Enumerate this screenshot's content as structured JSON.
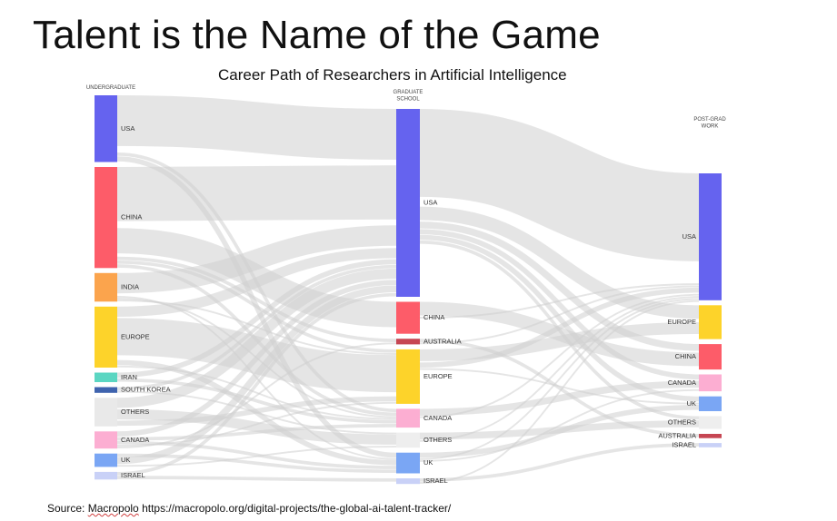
{
  "slide": {
    "title": "Talent is the Name of the Game",
    "subtitle": "Career Path of Researchers in Artificial Intelligence"
  },
  "source": {
    "prefix": "Source: ",
    "brand": "Macropolo",
    "url": "https://macropolo.org/digital-projects/the-global-ai-talent-tracker/"
  },
  "stages": [
    {
      "id": "ug",
      "lines": [
        "UNDERGRADUATE"
      ]
    },
    {
      "id": "grad",
      "lines": [
        "GRADUATE",
        "SCHOOL"
      ]
    },
    {
      "id": "post",
      "lines": [
        "POST-GRAD",
        "WORK"
      ]
    }
  ],
  "nodes": {
    "ug": [
      {
        "label": "USA",
        "color": "#6563ef",
        "value": 35
      },
      {
        "label": "CHINA",
        "color": "#fd5c69",
        "value": 53
      },
      {
        "label": "INDIA",
        "color": "#fba44d",
        "value": 15
      },
      {
        "label": "EUROPE",
        "color": "#fdd32a",
        "value": 32
      },
      {
        "label": "IRAN",
        "color": "#5bd6c2",
        "value": 5
      },
      {
        "label": "SOUTH KOREA",
        "color": "#3f63ae",
        "value": 3
      },
      {
        "label": "OTHERS",
        "color": "#e9e9e9",
        "value": 15
      },
      {
        "label": "CANADA",
        "color": "#fcaed2",
        "value": 9
      },
      {
        "label": "UK",
        "color": "#7aa6f4",
        "value": 7
      },
      {
        "label": "ISRAEL",
        "color": "#c9d1f7",
        "value": 4
      }
    ],
    "grad": [
      {
        "label": "USA",
        "color": "#6563ef",
        "value": 100
      },
      {
        "label": "CHINA",
        "color": "#fd5c69",
        "value": 17
      },
      {
        "label": "AUSTRALIA",
        "color": "#c64653",
        "value": 3
      },
      {
        "label": "EUROPE",
        "color": "#fdd32a",
        "value": 29
      },
      {
        "label": "CANADA",
        "color": "#fcaed2",
        "value": 10
      },
      {
        "label": "OTHERS",
        "color": "#eeeeee",
        "value": 8
      },
      {
        "label": "UK",
        "color": "#7aa6f4",
        "value": 11
      },
      {
        "label": "ISRAEL",
        "color": "#c9d1f7",
        "value": 3
      }
    ],
    "post": [
      {
        "label": "USA",
        "color": "#6563ef",
        "value": 60
      },
      {
        "label": "EUROPE",
        "color": "#fdd32a",
        "value": 16
      },
      {
        "label": "CHINA",
        "color": "#fd5c69",
        "value": 12
      },
      {
        "label": "CANADA",
        "color": "#fcaed2",
        "value": 8
      },
      {
        "label": "UK",
        "color": "#7aa6f4",
        "value": 7
      },
      {
        "label": "OTHERS",
        "color": "#eeeeee",
        "value": 6
      },
      {
        "label": "AUSTRALIA",
        "color": "#c64653",
        "value": 2
      },
      {
        "label": "ISRAEL",
        "color": "#c9d1f7",
        "value": 2
      }
    ]
  },
  "links": {
    "ug_grad": [
      [
        "USA",
        "USA",
        30
      ],
      [
        "USA",
        "CANADA",
        2
      ],
      [
        "USA",
        "UK",
        3
      ],
      [
        "CHINA",
        "USA",
        32
      ],
      [
        "CHINA",
        "CHINA",
        15
      ],
      [
        "CHINA",
        "AUSTRALIA",
        2
      ],
      [
        "CHINA",
        "EUROPE",
        2
      ],
      [
        "CHINA",
        "CANADA",
        2
      ],
      [
        "INDIA",
        "USA",
        12
      ],
      [
        "INDIA",
        "UK",
        1
      ],
      [
        "INDIA",
        "CANADA",
        1
      ],
      [
        "INDIA",
        "EUROPE",
        1
      ],
      [
        "EUROPE",
        "USA",
        6
      ],
      [
        "EUROPE",
        "EUROPE",
        22
      ],
      [
        "EUROPE",
        "UK",
        3
      ],
      [
        "EUROPE",
        "CANADA",
        1
      ],
      [
        "IRAN",
        "USA",
        3
      ],
      [
        "IRAN",
        "CANADA",
        2
      ],
      [
        "SOUTH KOREA",
        "USA",
        2
      ],
      [
        "SOUTH KOREA",
        "OTHERS",
        1
      ],
      [
        "OTHERS",
        "USA",
        6
      ],
      [
        "OTHERS",
        "OTHERS",
        6
      ],
      [
        "OTHERS",
        "EUROPE",
        3
      ],
      [
        "CANADA",
        "USA",
        3
      ],
      [
        "CANADA",
        "CANADA",
        2
      ],
      [
        "CANADA",
        "UK",
        2
      ],
      [
        "CANADA",
        "EUROPE",
        1
      ],
      [
        "CANADA",
        "AUSTRALIA",
        1
      ],
      [
        "UK",
        "UK",
        2
      ],
      [
        "UK",
        "USA",
        4
      ],
      [
        "UK",
        "OTHERS",
        1
      ],
      [
        "ISRAEL",
        "USA",
        2
      ],
      [
        "ISRAEL",
        "ISRAEL",
        2
      ]
    ],
    "grad_post": [
      [
        "USA",
        "USA",
        52
      ],
      [
        "USA",
        "EUROPE",
        8
      ],
      [
        "USA",
        "CHINA",
        4
      ],
      [
        "USA",
        "CANADA",
        3
      ],
      [
        "USA",
        "UK",
        3
      ],
      [
        "USA",
        "OTHERS",
        2
      ],
      [
        "CHINA",
        "CHINA",
        8
      ],
      [
        "CHINA",
        "USA",
        1
      ],
      [
        "AUSTRALIA",
        "AUSTRALIA",
        2
      ],
      [
        "AUSTRALIA",
        "USA",
        1
      ],
      [
        "EUROPE",
        "EUROPE",
        7
      ],
      [
        "EUROPE",
        "USA",
        3
      ],
      [
        "EUROPE",
        "UK",
        1
      ],
      [
        "CANADA",
        "CANADA",
        4
      ],
      [
        "CANADA",
        "USA",
        1
      ],
      [
        "OTHERS",
        "OTHERS",
        4
      ],
      [
        "OTHERS",
        "USA",
        1
      ],
      [
        "UK",
        "UK",
        3
      ],
      [
        "UK",
        "USA",
        1
      ],
      [
        "UK",
        "CANADA",
        1
      ],
      [
        "ISRAEL",
        "ISRAEL",
        2
      ],
      [
        "ISRAEL",
        "USA",
        1
      ]
    ]
  }
}
